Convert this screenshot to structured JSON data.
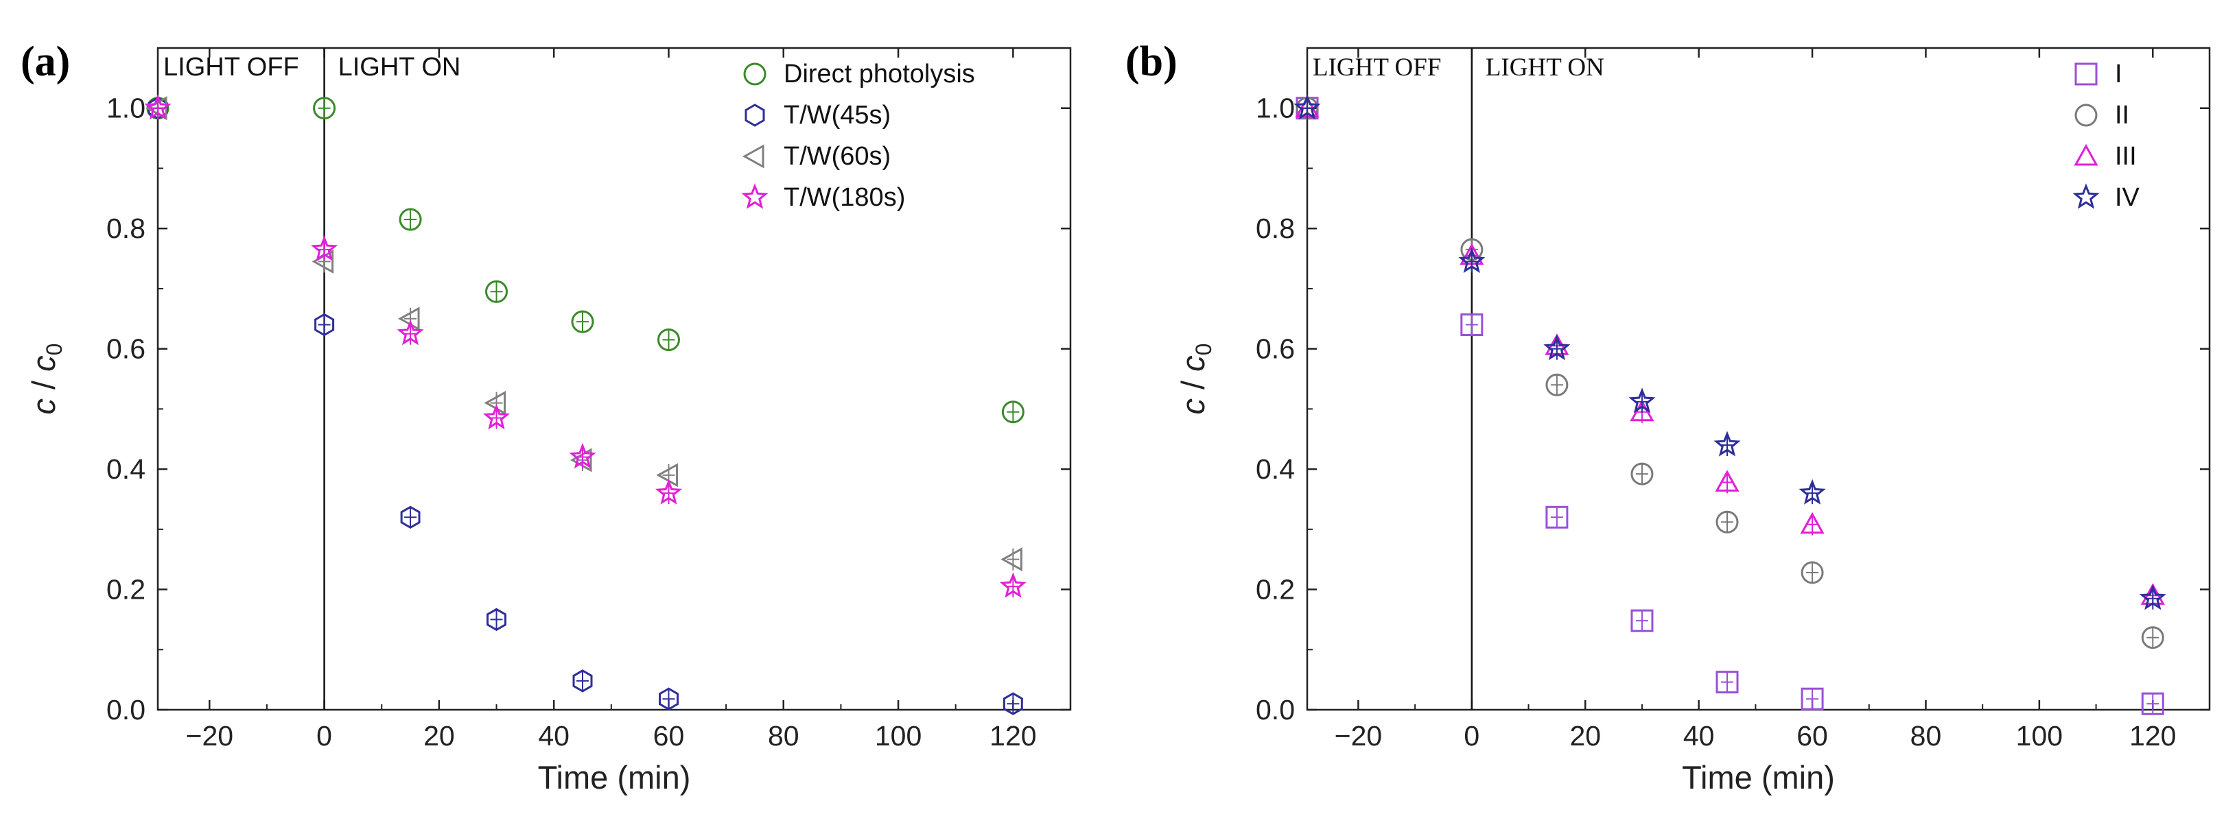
{
  "chart_data": [
    {
      "type": "scatter",
      "panel_label": "(a)",
      "xlabel": "Time (min)",
      "ylabel_main": "c",
      "ylabel_sep": " / ",
      "ylabel_sub_base": "c",
      "ylabel_sub": "0",
      "xlim": [
        -29,
        130
      ],
      "ylim": [
        0,
        1.1
      ],
      "xticks": [
        -20,
        0,
        20,
        40,
        60,
        80,
        100,
        120
      ],
      "xtick_labels": [
        "−20",
        "0",
        "20",
        "40",
        "60",
        "80",
        "100",
        "120"
      ],
      "yticks": [
        0.0,
        0.2,
        0.4,
        0.6,
        0.8,
        1.0
      ],
      "ytick_labels": [
        "0.0",
        "0.2",
        "0.4",
        "0.6",
        "0.8",
        "1.0"
      ],
      "vline_x": 0,
      "region_labels": [
        "LIGHT OFF",
        "LIGHT ON"
      ],
      "legend_position": "top-right",
      "series": [
        {
          "name": "Direct photolysis",
          "marker": "circle",
          "color": "#3a8a2a",
          "x": [
            -29,
            0,
            15,
            30,
            45,
            60,
            120
          ],
          "y": [
            1.0,
            1.0,
            0.815,
            0.695,
            0.645,
            0.615,
            0.495
          ]
        },
        {
          "name": "T/W(45s)",
          "marker": "hexagon",
          "color": "#2e2e9a",
          "x": [
            -29,
            0,
            15,
            30,
            45,
            60,
            120
          ],
          "y": [
            1.0,
            0.64,
            0.32,
            0.15,
            0.048,
            0.018,
            0.01
          ]
        },
        {
          "name": "T/W(60s)",
          "marker": "triangle-left",
          "color": "#808080",
          "x": [
            -29,
            0,
            15,
            30,
            45,
            60,
            120
          ],
          "y": [
            1.0,
            0.745,
            0.65,
            0.51,
            0.415,
            0.39,
            0.25
          ]
        },
        {
          "name": "T/W(180s)",
          "marker": "star",
          "color": "#e020d8",
          "x": [
            -29,
            0,
            15,
            30,
            45,
            60,
            120
          ],
          "y": [
            1.0,
            0.765,
            0.625,
            0.485,
            0.42,
            0.36,
            0.205
          ]
        }
      ]
    },
    {
      "type": "scatter",
      "panel_label": "(b)",
      "xlabel": "Time (min)",
      "ylabel_main": "c",
      "ylabel_sep": " / ",
      "ylabel_sub_base": "c",
      "ylabel_sub": "0",
      "xlim": [
        -29,
        130
      ],
      "ylim": [
        0,
        1.1
      ],
      "xticks": [
        -20,
        0,
        20,
        40,
        60,
        80,
        100,
        120
      ],
      "xtick_labels": [
        "−20",
        "0",
        "20",
        "40",
        "60",
        "80",
        "100",
        "120"
      ],
      "yticks": [
        0.0,
        0.2,
        0.4,
        0.6,
        0.8,
        1.0
      ],
      "ytick_labels": [
        "0.0",
        "0.2",
        "0.4",
        "0.6",
        "0.8",
        "1.0"
      ],
      "vline_x": 0,
      "region_labels": [
        "LIGHT OFF",
        "LIGHT ON"
      ],
      "legend_position": "top-right",
      "series": [
        {
          "name": "I",
          "marker": "square",
          "color": "#9a4fd8",
          "x": [
            -29,
            0,
            15,
            30,
            45,
            60,
            120
          ],
          "y": [
            1.0,
            0.64,
            0.32,
            0.148,
            0.046,
            0.018,
            0.01
          ]
        },
        {
          "name": "II",
          "marker": "circle",
          "color": "#7a7a7a",
          "x": [
            -29,
            0,
            15,
            30,
            45,
            60,
            120
          ],
          "y": [
            1.0,
            0.765,
            0.54,
            0.392,
            0.312,
            0.228,
            0.12
          ]
        },
        {
          "name": "III",
          "marker": "triangle-up",
          "color": "#e020d8",
          "x": [
            -29,
            0,
            15,
            30,
            45,
            60,
            120
          ],
          "y": [
            1.0,
            0.755,
            0.605,
            0.495,
            0.378,
            0.308,
            0.19
          ]
        },
        {
          "name": "IV",
          "marker": "star",
          "color": "#2e2e9a",
          "x": [
            -29,
            0,
            15,
            30,
            45,
            60,
            120
          ],
          "y": [
            1.0,
            0.745,
            0.6,
            0.512,
            0.44,
            0.36,
            0.185
          ]
        }
      ]
    }
  ]
}
